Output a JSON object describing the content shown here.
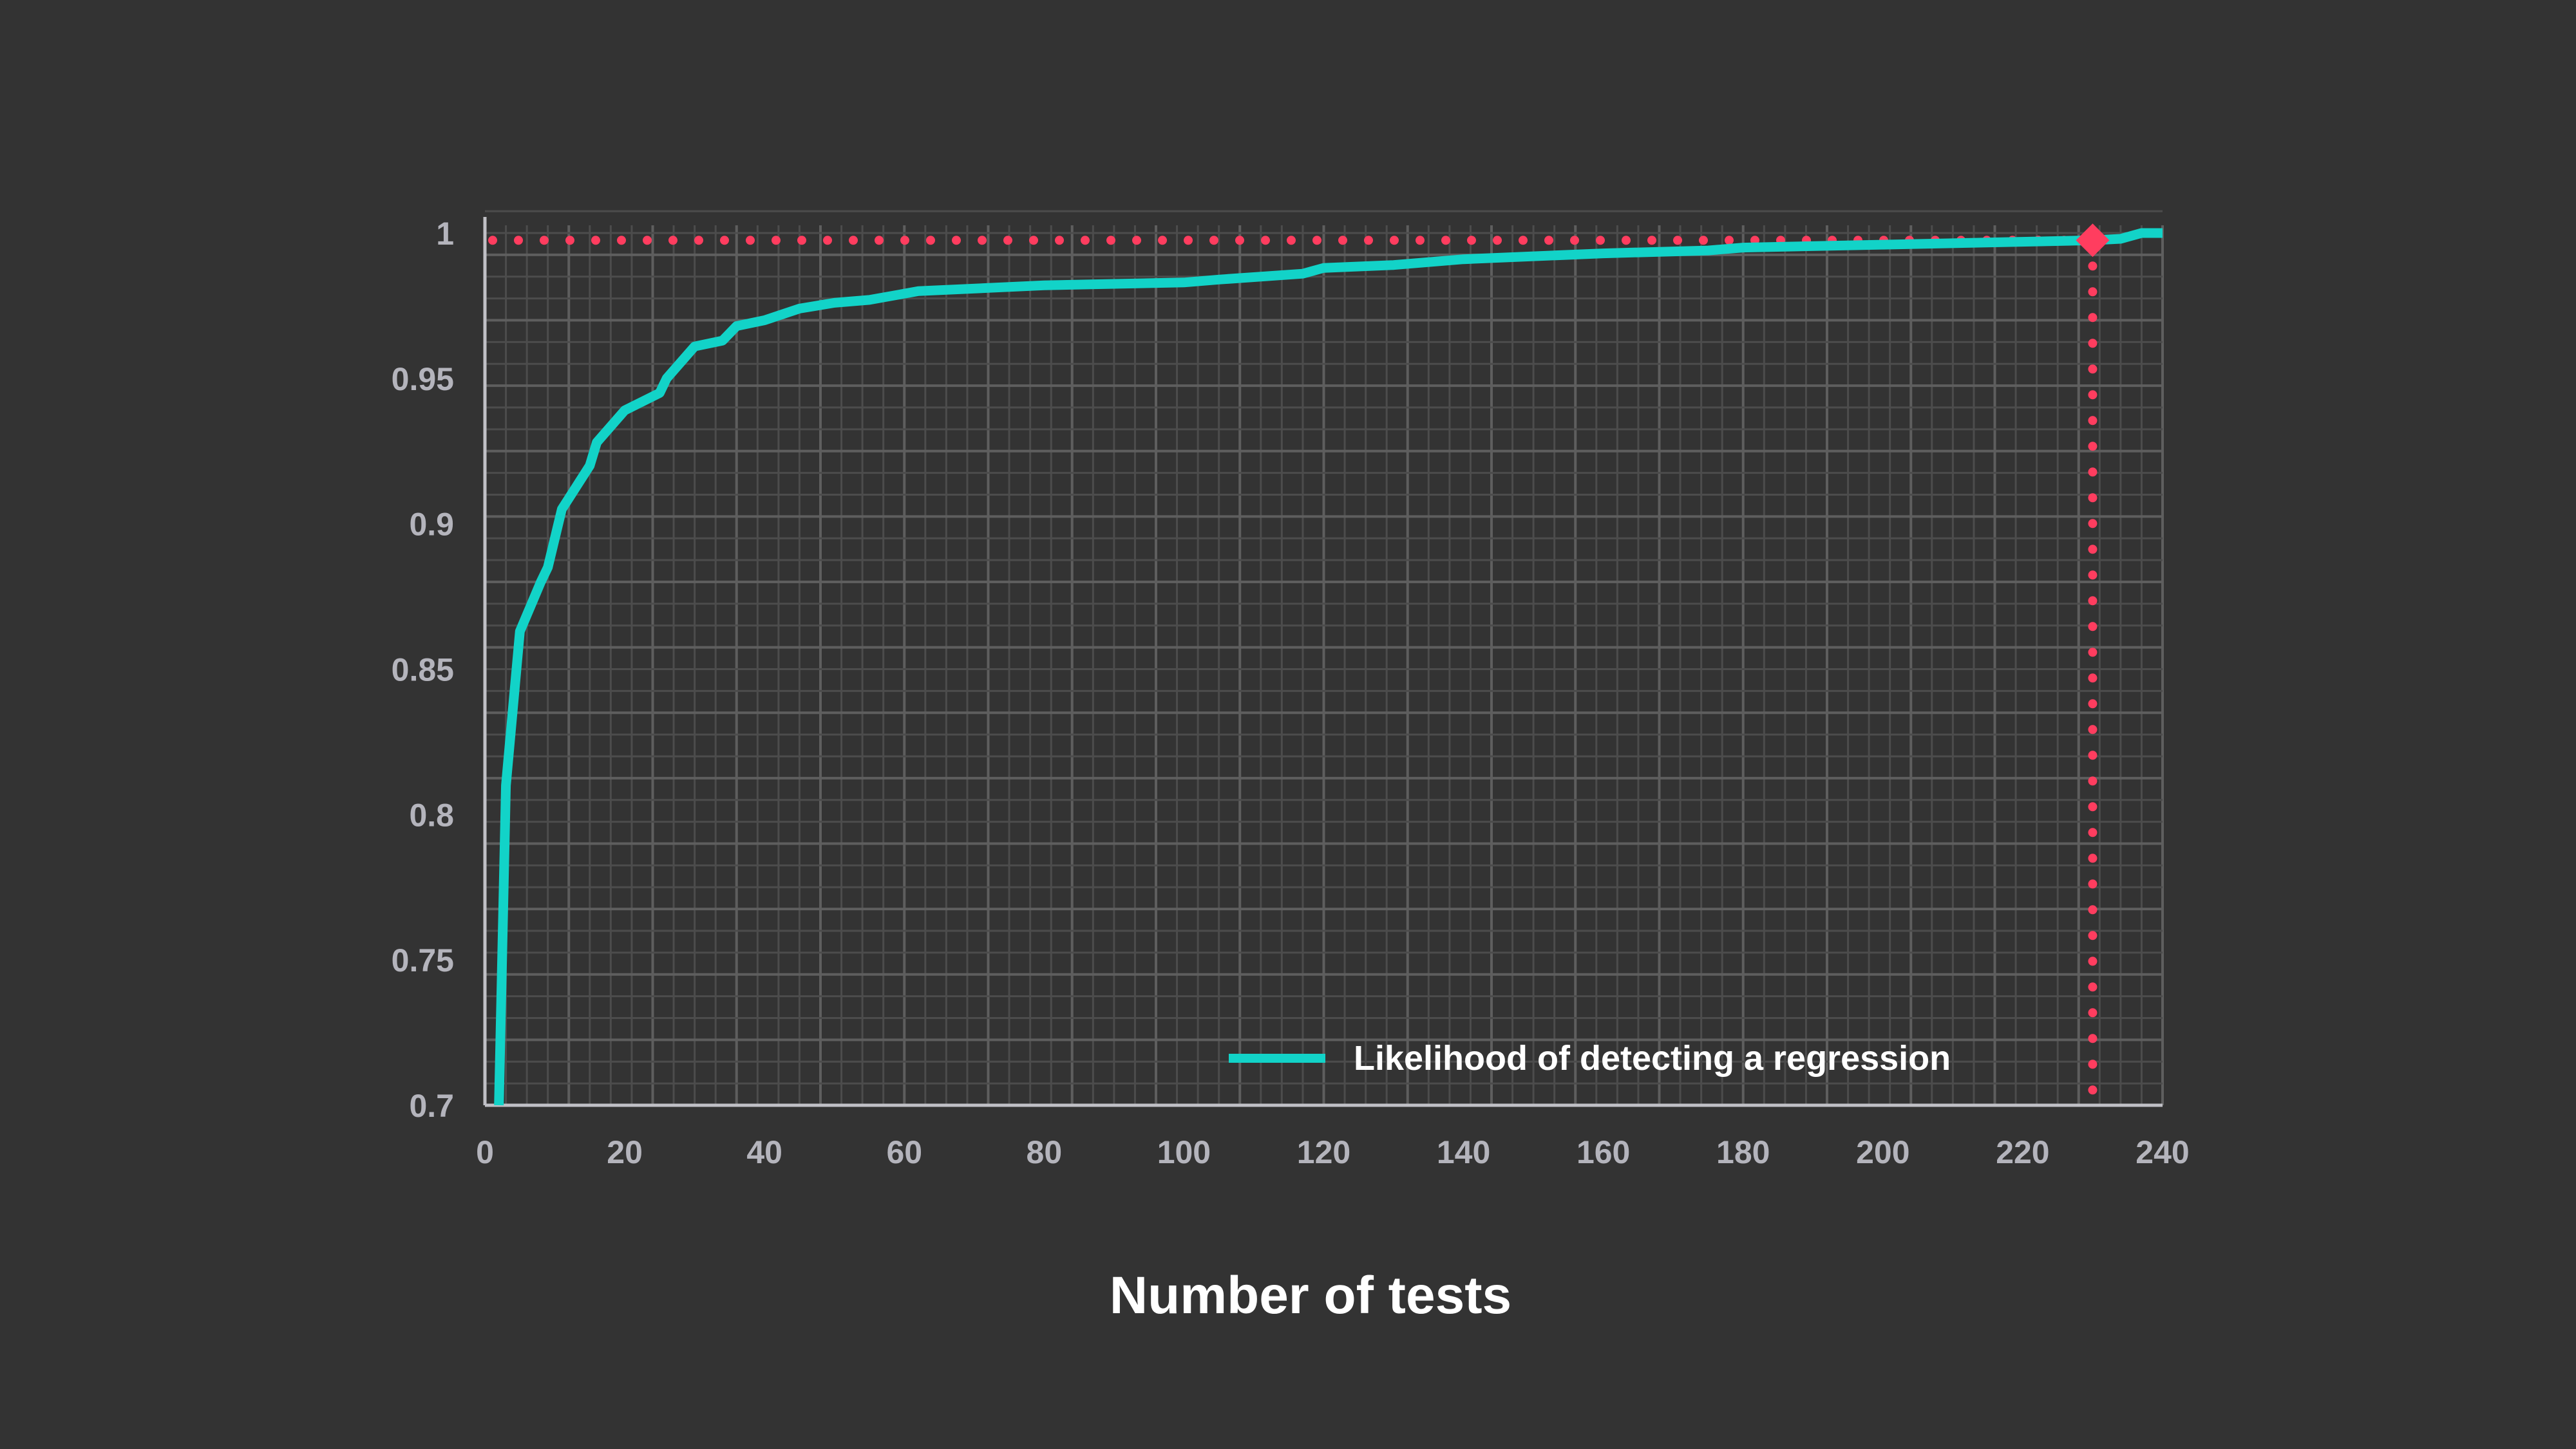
{
  "chart_data": {
    "type": "line",
    "title": "",
    "xlabel": "Number of tests",
    "ylabel": "",
    "xlim": [
      0,
      240
    ],
    "ylim": [
      0.7,
      1
    ],
    "xticks": [
      "0",
      "20",
      "40",
      "60",
      "80",
      "100",
      "120",
      "140",
      "160",
      "180",
      "200",
      "220",
      "240"
    ],
    "yticks": [
      "0.7",
      "0.75",
      "0.8",
      "0.85",
      "0.9",
      "0.95",
      "1"
    ],
    "grid": true,
    "legend_position": "bottom-right",
    "series": [
      {
        "name": "Likelihood of detecting a regression",
        "color": "#12d3c8",
        "x": [
          2,
          3,
          5,
          8,
          9,
          11,
          15,
          16,
          20,
          25,
          26,
          30,
          34,
          36,
          40,
          45,
          50,
          55,
          62,
          80,
          100,
          105,
          117,
          120,
          130,
          140,
          160,
          175,
          180,
          200,
          230,
          234,
          237,
          240
        ],
        "y": [
          0.7,
          0.81,
          0.863,
          0.88,
          0.885,
          0.905,
          0.92,
          0.928,
          0.939,
          0.945,
          0.95,
          0.961,
          0.963,
          0.968,
          0.97,
          0.974,
          0.976,
          0.977,
          0.98,
          0.982,
          0.983,
          0.984,
          0.986,
          0.988,
          0.989,
          0.991,
          0.993,
          0.994,
          0.995,
          0.996,
          0.9975,
          0.998,
          1.0,
          1.0
        ]
      }
    ],
    "marker": {
      "x": 230,
      "y": 0.9975,
      "color": "#ff3d5f",
      "shape": "diamond"
    },
    "reference_lines_color": "#ff3d5f"
  }
}
